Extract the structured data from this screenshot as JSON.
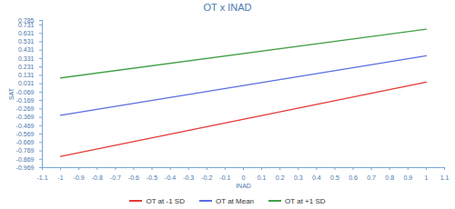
{
  "chart_data": {
    "type": "line",
    "title": "OT x INAD",
    "x_label": "INAD",
    "y_label": "SAT",
    "x": [
      -1,
      1
    ],
    "series": [
      {
        "name": "OT at -1 SD",
        "color": "#e53935",
        "values": [
          -0.835,
          0.05
        ]
      },
      {
        "name": "OT at Mean",
        "color": "#5b6ee1",
        "values": [
          -0.345,
          0.365
        ]
      },
      {
        "name": "OT at +1 SD",
        "color": "#43a047",
        "values": [
          0.1,
          0.68
        ]
      }
    ],
    "xlim": [
      -1.1,
      1.1
    ],
    "xticks": [
      -1.1,
      -1,
      -0.9,
      -0.8,
      -0.7,
      -0.6,
      -0.5,
      -0.4,
      -0.3,
      -0.2,
      -0.1,
      0,
      0.1,
      0.2,
      0.3,
      0.4,
      0.5,
      0.6,
      0.7,
      0.8,
      0.9,
      1,
      1.1
    ],
    "ylim": [
      -0.969,
      0.785
    ],
    "yticks": [
      -0.969,
      -0.869,
      -0.769,
      -0.669,
      -0.569,
      -0.469,
      -0.369,
      -0.269,
      -0.169,
      -0.069,
      0.031,
      0.131,
      0.231,
      0.331,
      0.431,
      0.531,
      0.631,
      0.731,
      0.785
    ],
    "grid": false,
    "legend": "bottom"
  }
}
